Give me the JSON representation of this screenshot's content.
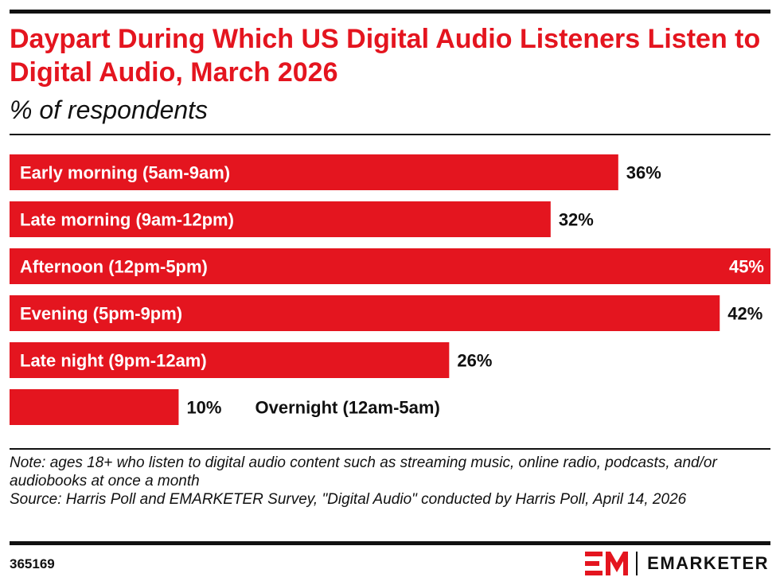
{
  "header": {
    "title": "Daypart During Which US Digital Audio Listeners Listen to Digital Audio, March 2026",
    "subtitle": "% of respondents"
  },
  "chart_data": {
    "type": "bar",
    "orientation": "horizontal",
    "categories": [
      "Early morning (5am-9am)",
      "Late morning (9am-12pm)",
      "Afternoon (12pm-5pm)",
      "Evening (5pm-9pm)",
      "Late night (9pm-12am)",
      "Overnight (12am-5am)"
    ],
    "values": [
      36,
      32,
      45,
      42,
      26,
      10
    ],
    "value_labels": [
      "36%",
      "32%",
      "45%",
      "42%",
      "26%",
      "10%"
    ],
    "unit": "%",
    "xlim": [
      0,
      45
    ],
    "grid": false,
    "legend": "none",
    "bar_color": "#e4151f"
  },
  "footer": {
    "note": "Note: ages 18+ who listen to digital audio content such as streaming music, online radio, podcasts, and/or audiobooks at once a month",
    "source": "Source: Harris Poll and EMARKETER Survey, \"Digital Audio\" conducted by Harris Poll, April 14, 2026",
    "chart_id": "365169",
    "brand": "EMARKETER"
  },
  "colors": {
    "accent": "#e4151f",
    "text": "#111111"
  }
}
